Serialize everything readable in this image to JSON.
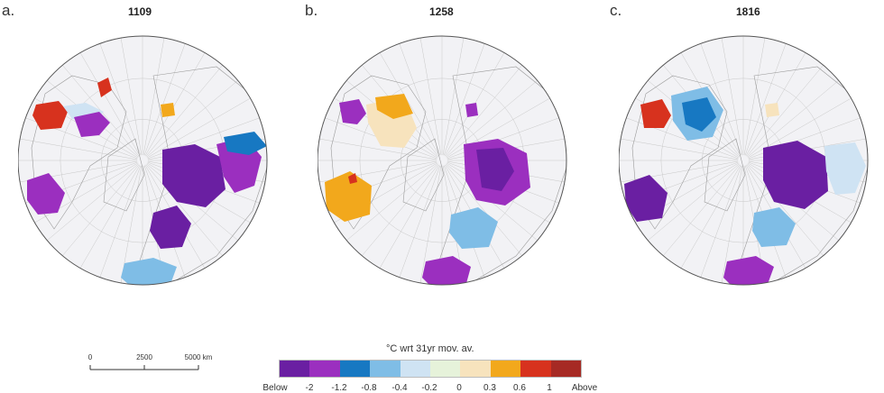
{
  "panels": [
    {
      "letter": "a.",
      "year": "1109"
    },
    {
      "letter": "b.",
      "year": "1258"
    },
    {
      "letter": "c.",
      "year": "1816"
    }
  ],
  "legend": {
    "title": "°C wrt 31yr mov. av.",
    "labels": [
      "Below",
      "-2",
      "-1.2",
      "-0.8",
      "-0.4",
      "-0.2",
      "0",
      "0.3",
      "0.6",
      "1",
      "Above"
    ],
    "colors": [
      "#6a1fa2",
      "#9b2fbf",
      "#1778c2",
      "#7fbde6",
      "#cfe3f3",
      "#e6f2da",
      "#f7e3bd",
      "#f2a81c",
      "#d7321e",
      "#a62a24"
    ]
  },
  "scale_bar": {
    "labels": [
      "0",
      "2500",
      "5000 km"
    ]
  },
  "colors": {
    "ocean": "#f2f2f5",
    "land_outline": "#9a9a9a",
    "graticule": "#c8c8c8"
  }
}
